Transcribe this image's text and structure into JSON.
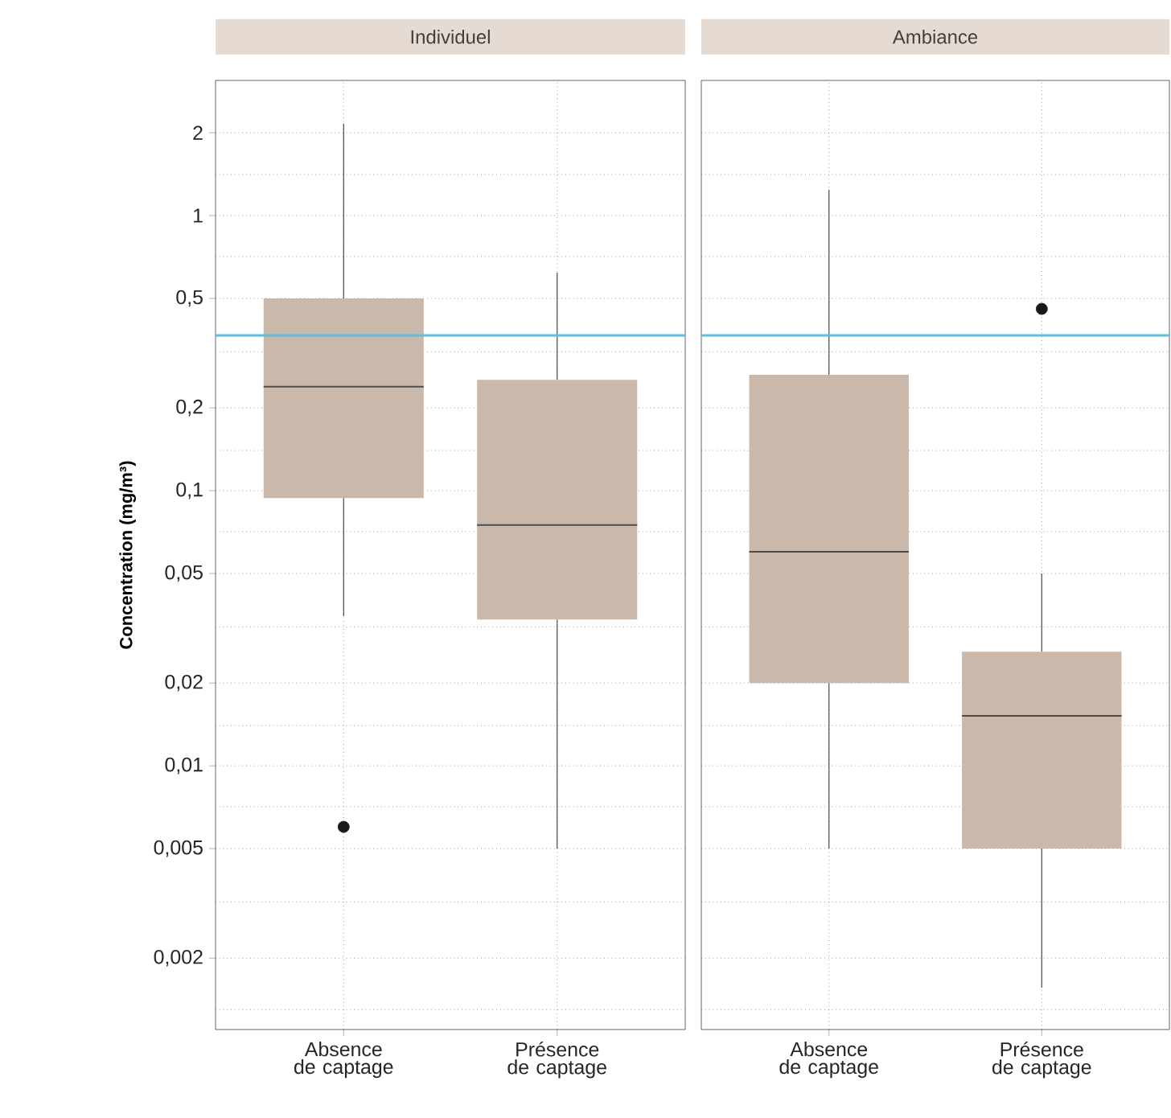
{
  "chart_data": [
    {
      "type": "box",
      "title": "Individuel",
      "ylabel": "Concentration (mg/m³)",
      "categories": [
        "Absence de captage",
        "Présence de captage"
      ],
      "color": "#cab9aa",
      "log": true,
      "grid": true,
      "boxes": [
        {
          "low": 0.035,
          "q1": 0.094,
          "median": 0.239,
          "q3": 0.5,
          "high": 2.16,
          "outliers": [
            0.006
          ]
        },
        {
          "low": 0.005,
          "q1": 0.034,
          "median": 0.075,
          "q3": 0.253,
          "high": 0.62
        }
      ],
      "ylim": [
        0.0011,
        3.1
      ],
      "yticks": [
        {
          "value": 0.002,
          "label": "0,002"
        },
        {
          "value": 0.005,
          "label": "0,005"
        },
        {
          "value": 0.01,
          "label": "0,01"
        },
        {
          "value": 0.02,
          "label": "0,02"
        },
        {
          "value": 0.05,
          "label": "0,05"
        },
        {
          "value": 0.1,
          "label": "0,1"
        },
        {
          "value": 0.2,
          "label": "0,2"
        },
        {
          "value": 0.5,
          "label": "0,5"
        },
        1,
        2,
        {
          "value": 0.0013,
          "label": null
        },
        {
          "value": 0.0032,
          "label": null
        },
        {
          "value": 0.0071,
          "label": null
        },
        {
          "value": 0.014,
          "label": null
        },
        {
          "value": 0.032,
          "label": null
        },
        {
          "value": 0.071,
          "label": null
        },
        {
          "value": 0.14,
          "label": null
        },
        {
          "value": 0.32,
          "label": null
        },
        {
          "value": 0.71,
          "label": null
        },
        {
          "value": 1.41,
          "label": null
        }
      ],
      "ref_lines": [
        {
          "axis": "y",
          "value": 0.367,
          "color": "#5bc0de"
        }
      ]
    },
    {
      "type": "box",
      "title": "Ambiance",
      "categories": [
        "Absence de captage",
        "Présence de captage"
      ],
      "color": "#cab9aa",
      "log": true,
      "grid": true,
      "tick_labels": "x",
      "boxes": [
        {
          "low": 0.005,
          "q1": 0.02,
          "median": 0.06,
          "q3": 0.264,
          "high": 1.24
        },
        {
          "low": 0.00156,
          "q1": 0.005,
          "median": 0.0152,
          "q3": 0.026,
          "high": 0.05,
          "outliers": [
            0.458
          ]
        }
      ],
      "ylim": [
        0.0011,
        3.1
      ],
      "yticks": [
        {
          "value": 0.002,
          "label": null
        },
        {
          "value": 0.005,
          "label": null
        },
        {
          "value": 0.01,
          "label": null
        },
        {
          "value": 0.02,
          "label": null
        },
        {
          "value": 0.05,
          "label": null
        },
        {
          "value": 0.1,
          "label": null
        },
        {
          "value": 0.2,
          "label": null
        },
        {
          "value": 0.5,
          "label": null
        },
        {
          "value": 1,
          "label": null
        },
        {
          "value": 2,
          "label": null
        },
        {
          "value": 0.0013,
          "label": null
        },
        {
          "value": 0.0032,
          "label": null
        },
        {
          "value": 0.0071,
          "label": null
        },
        {
          "value": 0.014,
          "label": null
        },
        {
          "value": 0.032,
          "label": null
        },
        {
          "value": 0.071,
          "label": null
        },
        {
          "value": 0.14,
          "label": null
        },
        {
          "value": 0.32,
          "label": null
        },
        {
          "value": 0.71,
          "label": null
        },
        {
          "value": 1.41,
          "label": null
        }
      ],
      "ref_lines": [
        {
          "axis": "y",
          "value": 0.367,
          "color": "#5bc0de"
        }
      ]
    }
  ]
}
